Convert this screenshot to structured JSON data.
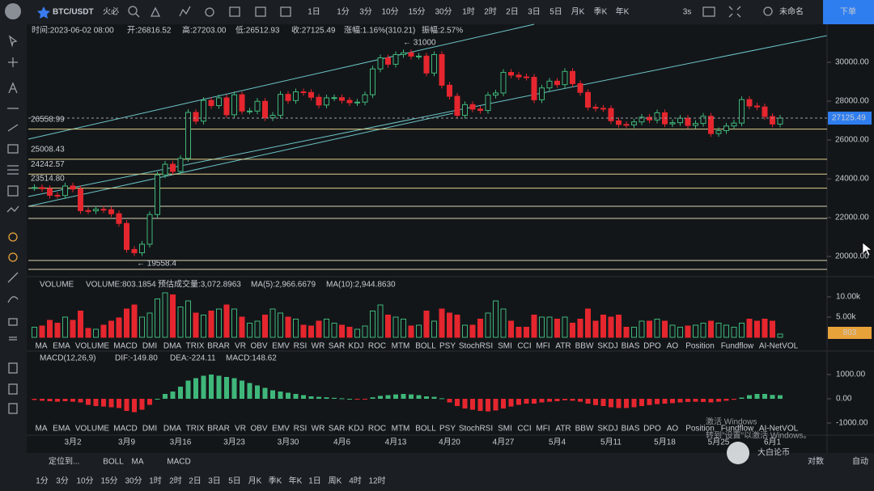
{
  "toolbar": {
    "symbol": "BTC/USDT",
    "exchange": "火必",
    "timeframes": [
      "1日",
      "1分",
      "3分",
      "10分",
      "15分",
      "30分",
      "1时",
      "2时",
      "2日",
      "3日",
      "5日",
      "月K",
      "季K",
      "年K"
    ],
    "refresh": "3s",
    "layout_name": "未命名",
    "order_button": "下单"
  },
  "info": [
    "时间:2023-06-02 08:00",
    "开:26816.52",
    "高:27203.00",
    "低:26512.93",
    "收:27125.49",
    "涨幅:1.16%(310.21)",
    "振幅:2.57%"
  ],
  "indicators": [
    "MA",
    "EMA",
    "VOLUME",
    "MACD",
    "DMI",
    "DMA",
    "TRIX",
    "BRAR",
    "VR",
    "OBV",
    "EMV",
    "RSI",
    "WR",
    "SAR",
    "KDJ",
    "ROC",
    "MTM",
    "BOLL",
    "PSY",
    "StochRSI",
    "SMI",
    "CCI",
    "MFI",
    "ATR",
    "BBW",
    "SKDJ",
    "BIAS",
    "DPO",
    "AO",
    "Position",
    "Fundflow",
    "AI-NetVOL"
  ],
  "volume_header": [
    "VOLUME",
    "VOLUME:803.1854",
    "预估成交量:3,072.8963",
    "MA(5):2,966.6679",
    "MA(10):2,944.8630"
  ],
  "macd_header": [
    "MACD(12,26,9)",
    "DIF:-149.80",
    "DEA:-224.11",
    "MACD:148.62"
  ],
  "chart_data": {
    "type": "candlestick",
    "categories": [
      null,
      null,
      null,
      null,
      null,
      "3月2",
      null,
      null,
      null,
      null,
      null,
      null,
      "3月9",
      null,
      null,
      null,
      null,
      null,
      null,
      "3月16",
      null,
      null,
      null,
      null,
      null,
      null,
      "3月23",
      null,
      null,
      null,
      null,
      null,
      null,
      "3月30",
      null,
      null,
      null,
      null,
      null,
      null,
      "4月6",
      null,
      null,
      null,
      null,
      null,
      null,
      "4月13",
      null,
      null,
      null,
      null,
      null,
      null,
      "4月20",
      null,
      null,
      null,
      null,
      null,
      null,
      "4月27",
      null,
      null,
      null,
      null,
      null,
      null,
      "5月4",
      null,
      null,
      null,
      null,
      null,
      null,
      "5月11",
      null,
      null,
      null,
      null,
      null,
      null,
      "5月18",
      null,
      null,
      null,
      null,
      null,
      null,
      "5月25",
      null,
      null,
      null,
      null,
      null,
      null,
      "6月1",
      null
    ],
    "close": [
      23550,
      23490,
      23150,
      23140,
      23630,
      23470,
      22360,
      22350,
      22430,
      22410,
      22200,
      21700,
      20360,
      20190,
      20630,
      22160,
      24200,
      24750,
      24380,
      25050,
      27420,
      26970,
      28040,
      27770,
      28170,
      27300,
      28330,
      27490,
      27490,
      27990,
      27140,
      27270,
      28350,
      28030,
      28480,
      28450,
      28200,
      27800,
      28170,
      28180,
      28040,
      27920,
      27950,
      28330,
      29660,
      30230,
      29900,
      30400,
      30490,
      30320,
      30320,
      29450,
      30400,
      28820,
      28250,
      27270,
      27820,
      27590,
      27520,
      28310,
      28420,
      29480,
      29340,
      29250,
      29230,
      28070,
      28680,
      29030,
      28850,
      29530,
      28900,
      28450,
      27690,
      27630,
      27620,
      26990,
      26800,
      26780,
      26930,
      27170,
      27030,
      27400,
      26830,
      26890,
      27120,
      26750,
      26850,
      27220,
      26330,
      26480,
      26720,
      26870,
      28080,
      27750,
      27700,
      27210,
      26820,
      27125.49
    ],
    "volume": [
      2500,
      2800,
      4200,
      3500,
      5000,
      4200,
      6500,
      2200,
      2000,
      3000,
      4000,
      4800,
      7000,
      8000,
      5000,
      6000,
      9500,
      11000,
      10500,
      7500,
      9000,
      6000,
      5500,
      6500,
      7000,
      8000,
      7000,
      5000,
      3500,
      4000,
      5500,
      7000,
      6000,
      5000,
      4500,
      3000,
      2800,
      4000,
      4500,
      3500,
      3000,
      2500,
      2000,
      2800,
      6500,
      8000,
      5500,
      5000,
      4500,
      2800,
      3000,
      6500,
      4000,
      7000,
      6000,
      5500,
      3000,
      3000,
      4500,
      6000,
      9000,
      7000,
      4000,
      2500,
      2500,
      5500,
      5000,
      5000,
      4500,
      5000,
      3500,
      4500,
      7000,
      4000,
      5500,
      5000,
      5500,
      2500,
      2500,
      4000,
      4000,
      4500,
      4000,
      3000,
      2500,
      2800,
      3000,
      3500,
      4000,
      3500,
      3000,
      2500,
      3500,
      4500,
      4000,
      4500,
      4000,
      803.1854
    ],
    "macd": [
      -50,
      -80,
      -100,
      -120,
      -100,
      -120,
      -150,
      -250,
      -300,
      -320,
      -350,
      -380,
      -500,
      -550,
      -450,
      -250,
      0,
      200,
      300,
      500,
      750,
      850,
      950,
      1000,
      950,
      900,
      850,
      750,
      650,
      550,
      450,
      350,
      300,
      250,
      200,
      150,
      100,
      80,
      60,
      40,
      20,
      0,
      -20,
      -10,
      60,
      120,
      150,
      180,
      200,
      180,
      150,
      100,
      80,
      20,
      -150,
      -300,
      -400,
      -450,
      -500,
      -520,
      -480,
      -400,
      -320,
      -250,
      -200,
      -200,
      -150,
      -120,
      -100,
      -60,
      -80,
      -120,
      -200,
      -260,
      -300,
      -350,
      -380,
      -380,
      -350,
      -300,
      -260,
      -220,
      -200,
      -180,
      -150,
      -130,
      -120,
      -130,
      -150,
      -120,
      -80,
      -40,
      50,
      150,
      200,
      200,
      160,
      148.62
    ],
    "ylim": [
      18960,
      31960
    ],
    "yticks": [
      {
        "value": 30000,
        "label": "30000.00"
      },
      {
        "value": 28000,
        "label": "28000.00"
      },
      {
        "value": 26000,
        "label": "26000.00"
      },
      {
        "value": 24000,
        "label": "24000.00"
      },
      {
        "value": 22000,
        "label": "22000.00"
      },
      {
        "value": 20000,
        "label": "20000.00"
      }
    ],
    "last_price": 27125.49,
    "labeled_levels": [
      26558.99,
      25008.43,
      24242.57,
      {
        "value": 23514.8,
        "label": "23514.80"
      }
    ],
    "levels": [
      22583,
      21958,
      19792,
      19333
    ],
    "high_note": "← 31000",
    "low_note": "← 19558.4",
    "volume_lim": [
      0,
      14400
    ],
    "volume_ticks": [
      {
        "value": 10000,
        "label": "10.00k"
      },
      {
        "value": 5000,
        "label": "5.00k"
      }
    ],
    "last_volume_label": "803",
    "macd_lim": [
      -1133,
      1867
    ],
    "macd_ticks": [
      {
        "value": 1000,
        "label": "1000.00"
      },
      {
        "value": 0,
        "label": "0.00"
      },
      {
        "value": -1000,
        "label": "-1000.00"
      }
    ],
    "up_color": "#3fb77a",
    "down_color": "#e5262e"
  },
  "bottom": {
    "locate": "定位到...",
    "studies": [
      "BOLL",
      "MA",
      "MACD"
    ],
    "timeframes": [
      "1分",
      "3分",
      "10分",
      "15分",
      "30分",
      "1时",
      "2时",
      "2日",
      "3日",
      "5日",
      "月K",
      "季K",
      "年K",
      "1日",
      "周K",
      "4时",
      "12时"
    ],
    "log": "对数",
    "auto": "自动"
  },
  "watermark": {
    "line1": "激活 Windows",
    "line2": "转到\"设置\"以激活 Windows。",
    "brand": "大白论币"
  }
}
